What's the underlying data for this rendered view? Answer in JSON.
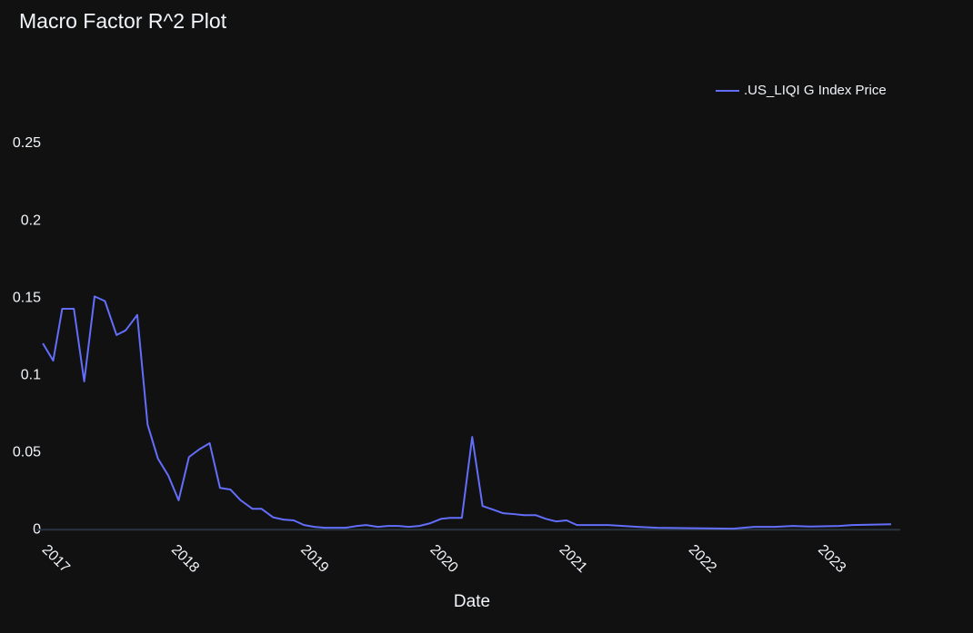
{
  "chart_data": {
    "type": "line",
    "title": "Macro Factor R^2 Plot",
    "x_label": "Date",
    "x": [
      2016.99,
      2017.07,
      2017.14,
      2017.23,
      2017.31,
      2017.39,
      2017.47,
      2017.56,
      2017.63,
      2017.72,
      2017.8,
      2017.88,
      2017.96,
      2018.04,
      2018.12,
      2018.2,
      2018.28,
      2018.36,
      2018.44,
      2018.52,
      2018.61,
      2018.68,
      2018.77,
      2018.85,
      2018.93,
      2019.01,
      2019.09,
      2019.17,
      2019.26,
      2019.33,
      2019.42,
      2019.49,
      2019.58,
      2019.66,
      2019.74,
      2019.82,
      2019.9,
      2019.98,
      2020.07,
      2020.14,
      2020.23,
      2020.31,
      2020.39,
      2020.47,
      2020.55,
      2020.64,
      2020.71,
      2020.8,
      2020.88,
      2020.96,
      2021.04,
      2021.12,
      2021.2,
      2021.28,
      2021.36,
      2021.59,
      2021.74,
      2022.02,
      2022.33,
      2022.49,
      2022.65,
      2022.79,
      2022.93,
      2023.15,
      2023.25,
      2023.55
    ],
    "series": [
      {
        "name": ".US_LIQI G Index Price",
        "color": "#636efa",
        "values": [
          0.1206,
          0.1094,
          0.143,
          0.143,
          0.096,
          0.151,
          0.148,
          0.126,
          0.129,
          0.139,
          0.068,
          0.046,
          0.035,
          0.019,
          0.047,
          0.052,
          0.056,
          0.027,
          0.026,
          0.019,
          0.0135,
          0.0135,
          0.008,
          0.0065,
          0.006,
          0.003,
          0.0018,
          0.0012,
          0.0012,
          0.0012,
          0.0024,
          0.003,
          0.0018,
          0.0024,
          0.0024,
          0.0018,
          0.0024,
          0.004,
          0.007,
          0.0076,
          0.0076,
          0.06,
          0.0153,
          0.013,
          0.0106,
          0.01,
          0.0094,
          0.0094,
          0.007,
          0.0053,
          0.006,
          0.003,
          0.003,
          0.003,
          0.003,
          0.0018,
          0.0012,
          0.0009,
          0.0006,
          0.0018,
          0.0018,
          0.0024,
          0.002,
          0.0024,
          0.003,
          0.0035
        ]
      }
    ],
    "xlim": [
      2016.94,
      2023.62
    ],
    "xticks": [
      2017,
      2018,
      2019,
      2020,
      2021,
      2022,
      2023
    ],
    "ylim": [
      -0.004,
      0.28
    ],
    "yticks": [
      0,
      0.05,
      0.1,
      0.15,
      0.2,
      0.25
    ],
    "grid": false,
    "zeroline": true,
    "legend": "top-right"
  }
}
